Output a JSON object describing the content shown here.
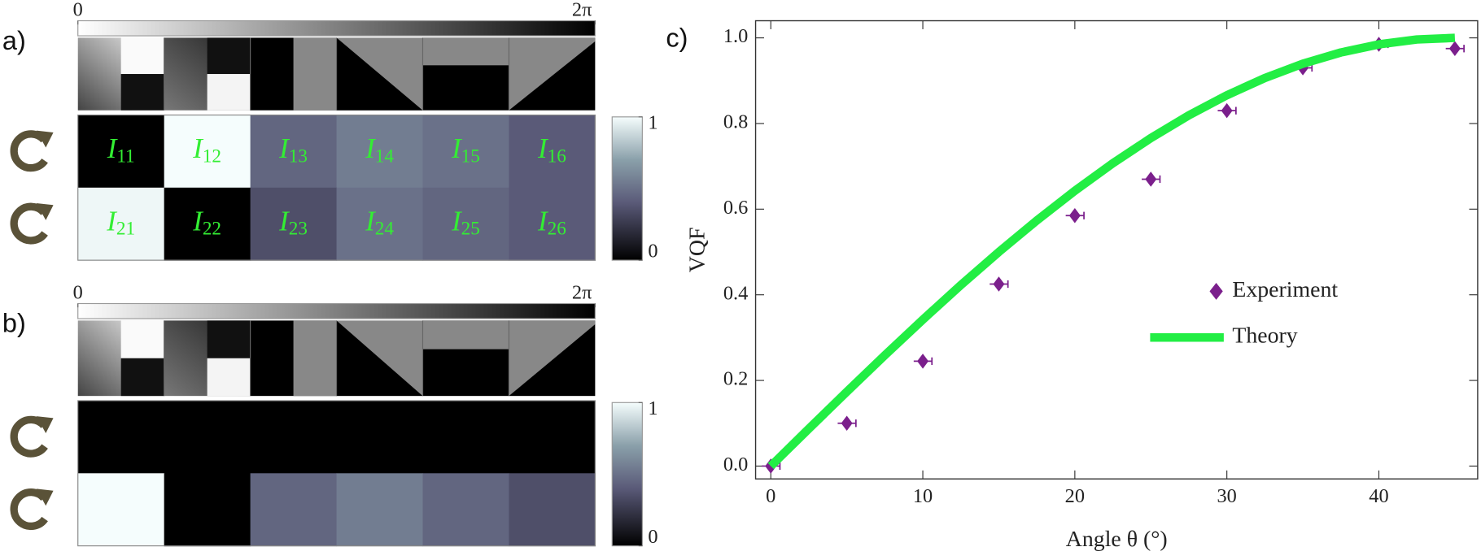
{
  "chart_data": [
    {
      "type": "heatmap",
      "label": "a)",
      "phase_lim": [
        0,
        6.2832
      ],
      "phase_ticks": [
        {
          "value": 0,
          "label": "0"
        },
        {
          "value": 6.2832,
          "label": "2π"
        }
      ],
      "clim": [
        0,
        1
      ],
      "cticks": [
        1,
        0
      ],
      "values": [
        [
          0,
          1,
          0.45,
          0.55,
          0.5,
          0.4
        ],
        [
          0.98,
          0,
          0.35,
          0.5,
          0.45,
          0.4
        ]
      ],
      "cell_labels": [
        [
          {
            "symbol": "I",
            "index": "11"
          },
          {
            "symbol": "I",
            "index": "12"
          },
          {
            "symbol": "I",
            "index": "13"
          },
          {
            "symbol": "I",
            "index": "14"
          },
          {
            "symbol": "I",
            "index": "15"
          },
          {
            "symbol": "I",
            "index": "16"
          }
        ],
        [
          {
            "symbol": "I",
            "index": "21"
          },
          {
            "symbol": "I",
            "index": "22"
          },
          {
            "symbol": "I",
            "index": "23"
          },
          {
            "symbol": "I",
            "index": "24"
          },
          {
            "symbol": "I",
            "index": "25"
          },
          {
            "symbol": "I",
            "index": "26"
          }
        ]
      ]
    },
    {
      "type": "heatmap",
      "label": "b)",
      "phase_lim": [
        0,
        6.2832
      ],
      "phase_ticks": [
        {
          "value": 0,
          "label": "0"
        },
        {
          "value": 6.2832,
          "label": "2π"
        }
      ],
      "clim": [
        0,
        1
      ],
      "cticks": [
        1,
        0
      ],
      "values": [
        [
          0,
          0,
          0,
          0,
          0,
          0
        ],
        [
          1,
          0,
          0.45,
          0.55,
          0.45,
          0.35
        ]
      ]
    },
    {
      "type": "scatter",
      "label": "c)",
      "x_label": "Angle θ (°)",
      "y_label": "VQF",
      "xlim": [
        -1,
        46.5
      ],
      "ylim": [
        -0.03,
        1.04
      ],
      "xticks": [
        0,
        10,
        20,
        30,
        40
      ],
      "yticks": [
        {
          "value": 0,
          "label": "0.0"
        },
        0.2,
        0.4,
        0.6,
        0.8,
        {
          "value": 1,
          "label": "1.0"
        }
      ],
      "legend": "right",
      "series": [
        {
          "name": "Experiment",
          "type": "scatter",
          "color": "#7b1f8c",
          "x": [
            0,
            5,
            10,
            15,
            20,
            25,
            30,
            35,
            40,
            45
          ],
          "values": [
            0.0,
            0.1,
            0.245,
            0.425,
            0.585,
            0.67,
            0.83,
            0.93,
            0.985,
            0.975
          ],
          "xerr": [
            0.6,
            0.6,
            0.6,
            0.6,
            0.6,
            0.6,
            0.6,
            0.6,
            0.6,
            0.6
          ]
        },
        {
          "name": "Theory",
          "type": "line",
          "color": "#22ee44",
          "x": [
            0,
            2.5,
            5,
            7.5,
            10,
            12.5,
            15,
            17.5,
            20,
            22.5,
            25,
            27.5,
            30,
            32.5,
            35,
            37.5,
            40,
            42.5,
            45
          ],
          "values": [
            0,
            0.0872,
            0.1736,
            0.2588,
            0.342,
            0.4226,
            0.5,
            0.5736,
            0.6428,
            0.7071,
            0.766,
            0.8192,
            0.866,
            0.9063,
            0.9397,
            0.9659,
            0.9848,
            0.9962,
            1.0
          ]
        }
      ]
    }
  ]
}
